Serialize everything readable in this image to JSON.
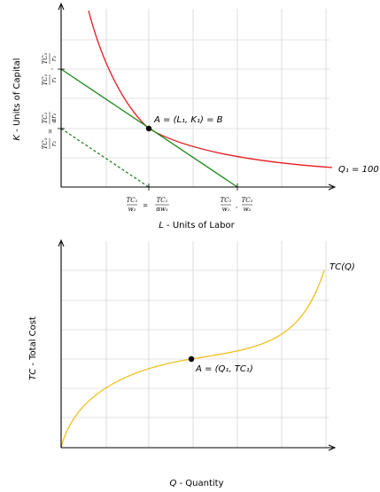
{
  "colors": {
    "isoquant": "#e8141b",
    "isocost": "#1a8a1a",
    "cost_curve": "#f0c020",
    "grid": "#c8c8c8"
  },
  "top_chart": {
    "ylabel_var": "K",
    "ylabel_text": " - Units of Capital",
    "xlabel_var": "L",
    "xlabel_text": " - Units of Labor",
    "point_label": "A = (L₁, K₁) = B",
    "curve_label": "Q₁ = 100",
    "x_tick_1": {
      "num": "TC₁",
      "den": "w₂",
      "eq": "=",
      "num2": "TC₁",
      "den2": "αw₁"
    },
    "x_tick_2": {
      "num": "TC₁",
      "den": "w₁",
      "num2": "TC₂",
      "den2": "w₂"
    },
    "y_tick_1": {
      "num": "TC₁",
      "den": "r₁",
      "num2": "TC₂",
      "den2": "r₂"
    },
    "y_tick_2": {
      "num": "TC₁",
      "den": "r₂",
      "eq": "=",
      "num2": "TC₁",
      "den2": "αr₁"
    }
  },
  "bottom_chart": {
    "ylabel_var": "TC",
    "ylabel_text": " - Total Cost",
    "xlabel_var": "Q",
    "xlabel_text": " - Quantity",
    "curve_label": "TC(Q)",
    "point_label": "A = (Q₁, TC₁)"
  }
}
